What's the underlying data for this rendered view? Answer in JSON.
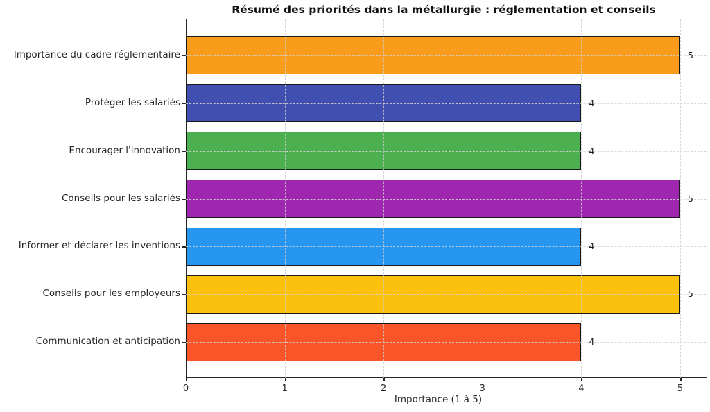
{
  "chart_data": {
    "type": "bar",
    "orientation": "horizontal",
    "title": "Résumé des priorités dans la métallurgie : réglementation et conseils",
    "xlabel": "Importance (1 à 5)",
    "categories": [
      "Importance du cadre réglementaire",
      "Protéger les salariés",
      "Encourager l'innovation",
      "Conseils pour les salariés",
      "Informer et déclarer les inventions",
      "Conseils pour les employeurs",
      "Communication et anticipation"
    ],
    "values": [
      5,
      4,
      4,
      5,
      4,
      5,
      4
    ],
    "value_labels": [
      "5",
      "4",
      "4",
      "5",
      "4",
      "5",
      "4"
    ],
    "bar_colors": [
      "#FA9C1B",
      "#4150B0",
      "#4CAF50",
      "#9F27B0",
      "#2696F0",
      "#FCC10D",
      "#FA5528"
    ],
    "xticks": [
      0,
      1,
      2,
      3,
      4,
      5
    ],
    "xlim": [
      0,
      5.27
    ],
    "grid": "dashed",
    "legend": "none",
    "bar_edge_color": "#1a1a1a"
  }
}
